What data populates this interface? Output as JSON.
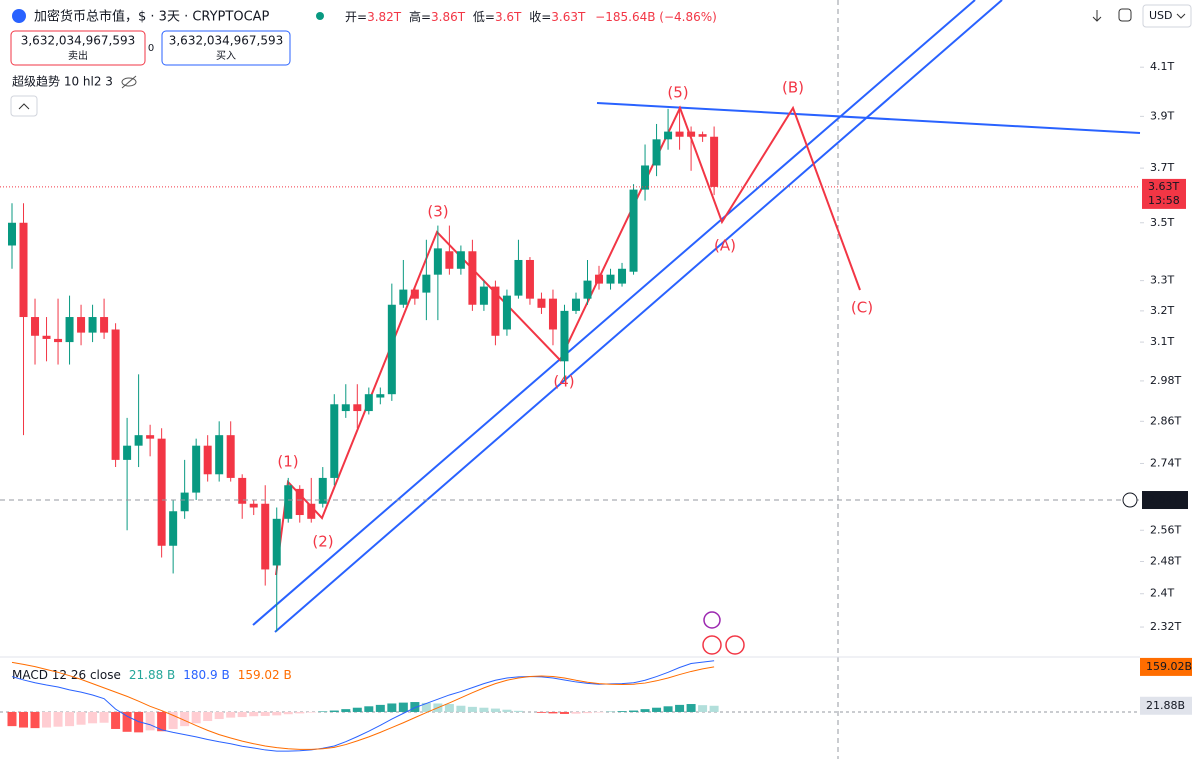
{
  "header": {
    "ohlc": [
      {
        "label": "开=",
        "value": "3.82T"
      },
      {
        "label": "高=",
        "value": "3.86T"
      },
      {
        "label": "低=",
        "value": "3.6T"
      },
      {
        "label": "收=",
        "value": "3.63T"
      }
    ],
    "change": "−185.64B (−4.86%)",
    "sell": {
      "price": "3,632,034,967,593",
      "label": "卖出"
    },
    "spread": "0",
    "buy": {
      "price": "3,632,034,967,593",
      "label": "买入"
    },
    "indicator": "超级趋势 10 hl2 3",
    "currency": "USD"
  },
  "chart_data": [
    {
      "type": "candlestick",
      "title": "加密货币总市值，$ · 3天 · CRYPTOCAP",
      "open": [
        3.42,
        3.5,
        3.18,
        3.12,
        3.11,
        3.1,
        3.18,
        3.13,
        3.18,
        3.14,
        2.75,
        2.79,
        2.82,
        2.81,
        2.52,
        2.61,
        2.66,
        2.79,
        2.71,
        2.82,
        2.7,
        2.63,
        2.63,
        2.47,
        2.59,
        2.67,
        2.63,
        2.63,
        2.7,
        2.89,
        2.91,
        2.89,
        2.93,
        2.94,
        3.22,
        3.27,
        3.26,
        3.32,
        3.4,
        3.34,
        3.4,
        3.22,
        3.28,
        3.14,
        3.25,
        3.37,
        3.24,
        3.24,
        3.04,
        3.2,
        3.24,
        3.32,
        3.29,
        3.29,
        3.33,
        3.62,
        3.71,
        3.81,
        3.84,
        3.84,
        3.83,
        3.82
      ],
      "high": [
        3.57,
        3.57,
        3.24,
        3.18,
        3.24,
        3.25,
        3.22,
        3.22,
        3.24,
        3.16,
        2.87,
        3.0,
        2.85,
        2.84,
        2.64,
        2.75,
        2.81,
        2.82,
        2.86,
        2.86,
        2.71,
        2.64,
        2.68,
        2.62,
        2.7,
        2.68,
        2.7,
        2.73,
        2.94,
        2.97,
        2.97,
        2.96,
        2.96,
        3.29,
        3.37,
        3.28,
        3.44,
        3.49,
        3.49,
        3.42,
        3.44,
        3.3,
        3.3,
        3.27,
        3.44,
        3.38,
        3.26,
        3.27,
        3.22,
        3.26,
        3.37,
        3.35,
        3.34,
        3.36,
        3.64,
        3.79,
        3.87,
        3.93,
        3.94,
        3.86,
        3.84,
        3.86
      ],
      "low": [
        3.34,
        2.82,
        3.03,
        3.04,
        3.03,
        3.03,
        3.09,
        3.1,
        3.11,
        2.73,
        2.56,
        2.73,
        2.76,
        2.49,
        2.45,
        2.59,
        2.64,
        2.69,
        2.69,
        2.69,
        2.59,
        2.6,
        2.42,
        2.31,
        2.58,
        2.58,
        2.58,
        2.62,
        2.68,
        2.87,
        2.84,
        2.88,
        2.91,
        2.92,
        3.21,
        3.22,
        3.17,
        3.17,
        3.32,
        3.32,
        3.2,
        3.2,
        3.09,
        3.12,
        3.24,
        3.22,
        3.19,
        3.09,
        2.98,
        3.19,
        3.22,
        3.27,
        3.27,
        3.28,
        3.32,
        3.58,
        3.67,
        3.77,
        3.77,
        3.69,
        3.8,
        3.6
      ],
      "close": [
        3.5,
        3.18,
        3.12,
        3.11,
        3.1,
        3.18,
        3.13,
        3.18,
        3.13,
        2.75,
        2.79,
        2.82,
        2.81,
        2.52,
        2.61,
        2.66,
        2.79,
        2.71,
        2.82,
        2.7,
        2.63,
        2.62,
        2.46,
        2.59,
        2.68,
        2.6,
        2.59,
        2.7,
        2.91,
        2.91,
        2.89,
        2.94,
        2.94,
        3.22,
        3.27,
        3.24,
        3.32,
        3.41,
        3.34,
        3.4,
        3.22,
        3.28,
        3.12,
        3.25,
        3.37,
        3.24,
        3.21,
        3.14,
        3.2,
        3.24,
        3.3,
        3.29,
        3.32,
        3.34,
        3.62,
        3.71,
        3.81,
        3.84,
        3.82,
        3.82,
        3.82,
        3.63
      ],
      "up_color": "#089981",
      "down_color": "#f23645",
      "ylim": [
        2.255,
        4.39
      ],
      "log_scale": true,
      "grid": false,
      "yticks": [
        {
          "value": 4.1,
          "label": "4.1T"
        },
        {
          "value": 3.9,
          "label": "3.9T"
        },
        {
          "value": 3.7,
          "label": "3.7T"
        },
        {
          "value": 3.5,
          "label": "3.5T"
        },
        {
          "value": 3.3,
          "label": "3.3T"
        },
        {
          "value": 3.2,
          "label": "3.2T"
        },
        {
          "value": 3.1,
          "label": "3.1T"
        },
        {
          "value": 2.98,
          "label": "2.98T"
        },
        {
          "value": 2.86,
          "label": "2.86T"
        },
        {
          "value": 2.74,
          "label": "2.74T"
        },
        {
          "value": 2.56,
          "label": "2.56T"
        },
        {
          "value": 2.48,
          "label": "2.48T"
        },
        {
          "value": 2.4,
          "label": "2.4T"
        },
        {
          "value": 2.32,
          "label": "2.32T"
        }
      ],
      "last_price": {
        "value": 3.63,
        "label": "3.63T"
      },
      "countdown": "13:58",
      "crosshair": {
        "value": 2.64,
        "label": "2.64T"
      },
      "annotations": [
        "(1)",
        "(2)",
        "(3)",
        "(4)",
        "(5)",
        "(A)",
        "(B)",
        "(C)"
      ]
    },
    {
      "type": "macd",
      "title": "MACD 12 26 close",
      "ylim": [
        -166,
        194
      ],
      "series": [
        {
          "kind": "histogram",
          "colors": [
            "#26a69a",
            "#b2dfdb",
            "#ff5252",
            "#ffcdd2"
          ],
          "last_label": "21.88 B",
          "axis_label": "21.88B",
          "values": [
            -50,
            -55,
            -57,
            -55,
            -52,
            -50,
            -45,
            -40,
            -38,
            -60,
            -70,
            -72,
            -65,
            -68,
            -60,
            -50,
            -40,
            -32,
            -25,
            -20,
            -18,
            -15,
            -14,
            -12,
            -8,
            -5,
            -2,
            2,
            5,
            10,
            15,
            20,
            25,
            30,
            33,
            35,
            32,
            30,
            28,
            22,
            18,
            15,
            12,
            8,
            4,
            0,
            -3,
            -5,
            -7,
            -6,
            -4,
            -2,
            1,
            3,
            5,
            10,
            15,
            20,
            25,
            28,
            24,
            21.88
          ]
        },
        {
          "kind": "line",
          "color": "#2962ff",
          "last_label": "180.9 B",
          "values": [
            125,
            113,
            103,
            95,
            88,
            78,
            70,
            60,
            47,
            10,
            -15,
            -34,
            -45,
            -63,
            -72,
            -80,
            -88,
            -97,
            -105,
            -112,
            -121,
            -127,
            -134,
            -138,
            -138,
            -137,
            -134,
            -128,
            -120,
            -105,
            -87,
            -68,
            -47,
            -25,
            -5,
            15,
            30,
            45,
            60,
            72,
            86,
            100,
            112,
            120,
            124,
            125,
            124,
            120,
            113,
            106,
            101,
            98,
            99,
            100,
            103,
            112,
            125,
            140,
            157,
            171,
            176,
            180.9
          ]
        },
        {
          "kind": "line",
          "color": "#ff6d00",
          "last_label": "159.02 B",
          "axis_label": "159.02B",
          "values": [
            175,
            168,
            160,
            150,
            140,
            128,
            115,
            100,
            85,
            70,
            55,
            38,
            20,
            5,
            -12,
            -30,
            -48,
            -65,
            -80,
            -92,
            -103,
            -112,
            -120,
            -126,
            -130,
            -132,
            -132,
            -130,
            -125,
            -115,
            -102,
            -88,
            -72,
            -55,
            -38,
            -20,
            -2,
            15,
            32,
            50,
            68,
            85,
            100,
            112,
            120,
            125,
            127,
            125,
            120,
            112,
            105,
            100,
            98,
            97,
            98,
            102,
            110,
            120,
            132,
            143,
            152,
            159.02
          ]
        }
      ]
    }
  ]
}
